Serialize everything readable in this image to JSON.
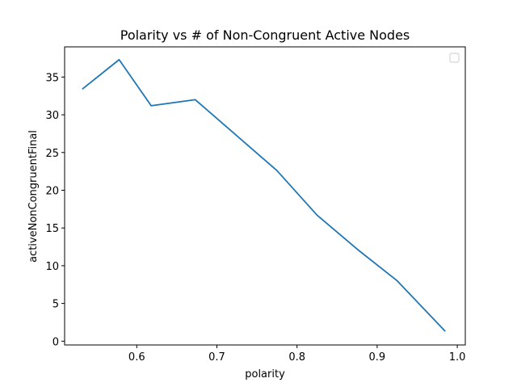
{
  "chart_data": {
    "type": "line",
    "title": "Polarity vs # of Non-Congruent Active Nodes",
    "xlabel": "polarity",
    "ylabel": "activeNonCongruentFinal",
    "xlim": [
      0.51,
      1.01
    ],
    "ylim": [
      -0.5,
      39.0
    ],
    "xticks": [
      0.6,
      0.7,
      0.8,
      0.9,
      1.0
    ],
    "xtick_labels": [
      "0.6",
      "0.7",
      "0.8",
      "0.9",
      "1.0"
    ],
    "yticks": [
      0,
      5,
      10,
      15,
      20,
      25,
      30,
      35
    ],
    "ytick_labels": [
      "0",
      "5",
      "10",
      "15",
      "20",
      "25",
      "30",
      "35"
    ],
    "grid": false,
    "legend": "upper-right (empty)",
    "series": [
      {
        "color": "#1f77b4",
        "x": [
          0.532,
          0.578,
          0.618,
          0.673,
          0.775,
          0.825,
          0.875,
          0.925,
          0.985
        ],
        "y": [
          33.4,
          37.3,
          31.2,
          32.0,
          22.6,
          16.7,
          12.2,
          8.0,
          1.3
        ]
      }
    ]
  }
}
